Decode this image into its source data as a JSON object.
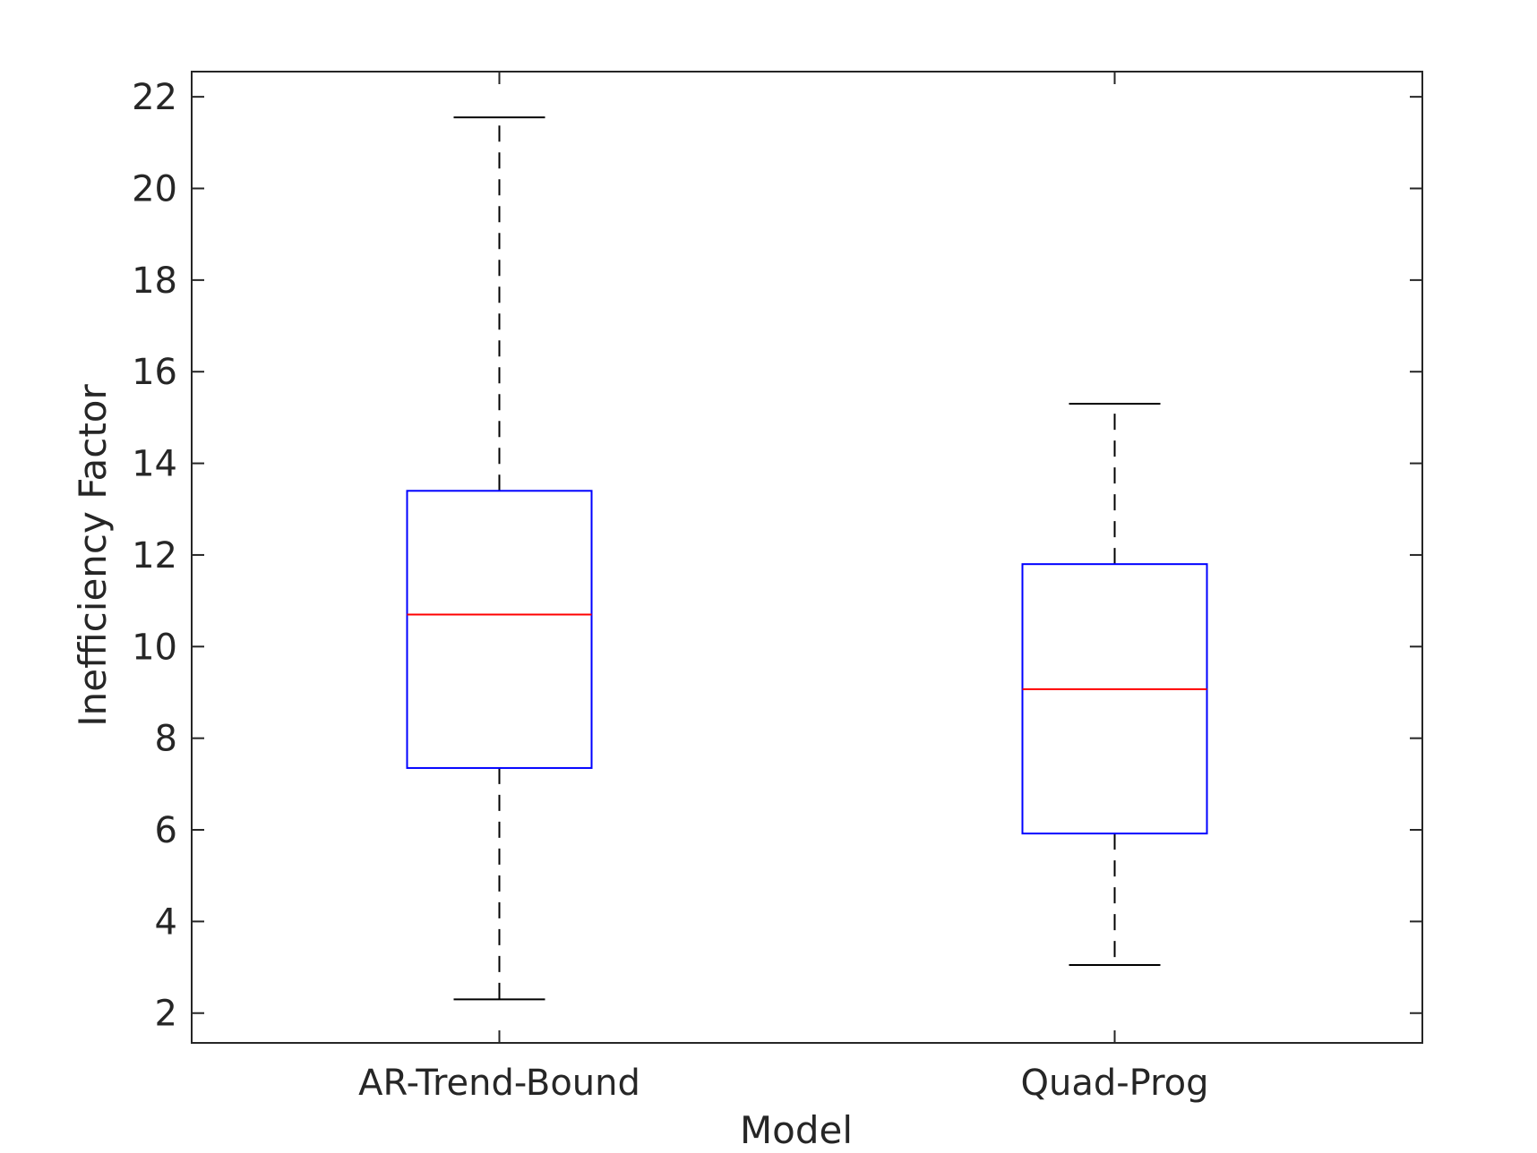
{
  "chart_data": {
    "type": "boxplot",
    "title": "",
    "xlabel": "Model",
    "ylabel": "Inefficiency Factor",
    "ylim": [
      1.35,
      22.55
    ],
    "yticks": [
      2,
      4,
      6,
      8,
      10,
      12,
      14,
      16,
      18,
      20,
      22
    ],
    "categories": [
      "AR-Trend-Bound",
      "Quad-Prog"
    ],
    "boxes": [
      {
        "category": "AR-Trend-Bound",
        "whisker_low": 2.3,
        "q1": 7.35,
        "median": 10.7,
        "q3": 13.4,
        "whisker_high": 21.55
      },
      {
        "category": "Quad-Prog",
        "whisker_low": 3.05,
        "q1": 5.92,
        "median": 9.07,
        "q3": 11.8,
        "whisker_high": 15.3
      }
    ],
    "grid": false,
    "colors": {
      "box": "#0000ff",
      "median": "#ff0000",
      "whisker": "#000000",
      "axes": "#262626"
    }
  }
}
